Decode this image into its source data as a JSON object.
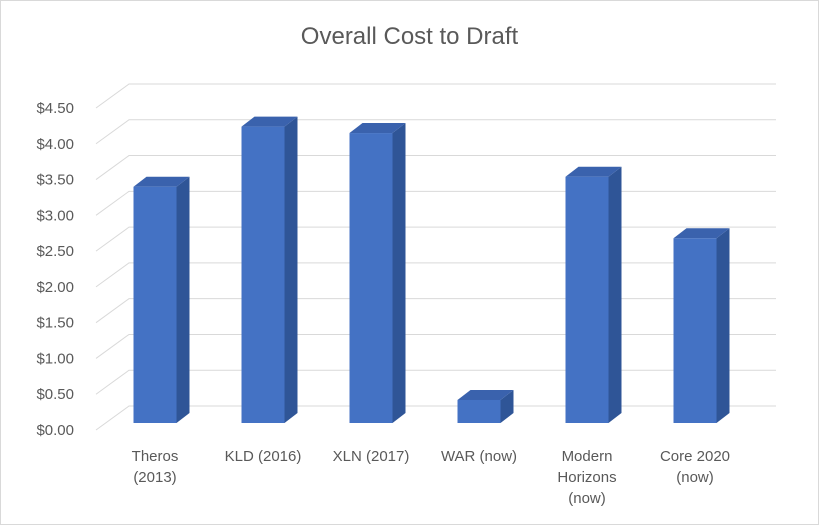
{
  "chart_data": {
    "type": "bar",
    "style": "3d-column",
    "title": "Overall Cost to Draft",
    "xlabel": "",
    "ylabel": "",
    "categories": [
      [
        "Theros",
        "(2013)"
      ],
      [
        "KLD (2016)"
      ],
      [
        "XLN (2017)"
      ],
      [
        "WAR (now)"
      ],
      [
        "Modern",
        "Horizons",
        "(now)"
      ],
      [
        "Core 2020",
        "(now)"
      ]
    ],
    "values": [
      3.4,
      4.24,
      4.15,
      0.42,
      3.54,
      2.68
    ],
    "ylim": [
      0,
      4.5
    ],
    "yticks": [
      "$0.00",
      "$0.50",
      "$1.00",
      "$1.50",
      "$2.00",
      "$2.50",
      "$3.00",
      "$3.50",
      "$4.00",
      "$4.50"
    ],
    "grid": true,
    "legend": "none",
    "colors": {
      "bar_front": "#4472c4",
      "bar_side": "#2f5597",
      "bar_top": "#3a62ad",
      "grid": "#d9d9d9",
      "text": "#595959"
    }
  }
}
